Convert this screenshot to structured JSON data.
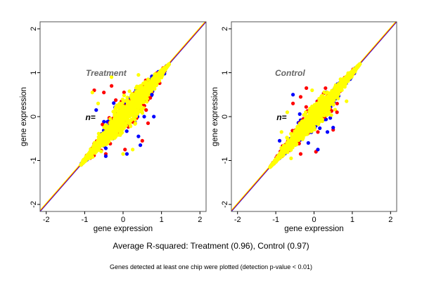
{
  "footer": {
    "summary": "Average R-squared: Treatment (0.96), Control (0.97)",
    "note": "Genes detected at least one chip were plotted (detection p-value < 0.01)"
  },
  "colors": {
    "point_primary": "#ffff00",
    "point_secondary": "#ff0000",
    "point_tertiary": "#0000ff",
    "identity_line": "#ff0000",
    "frame": "#555555"
  },
  "chart_data": [
    {
      "type": "scatter",
      "title": "Treatment",
      "annotation": "n=",
      "xlabel": "gene expression",
      "ylabel": "gene expression",
      "xlim": [
        -2.16,
        2.16
      ],
      "ylim": [
        -2.16,
        2.16
      ],
      "xticks": [
        "-2",
        "-1",
        "0",
        "1",
        "2"
      ],
      "yticks": [
        "-2",
        "-1",
        "0",
        "1",
        "2"
      ],
      "grid": false,
      "reference_line": {
        "slope": 1,
        "intercept": 0
      },
      "cloud_range": [
        -1.1,
        1.2
      ],
      "outliers": {
        "red": [
          [
            -0.75,
            0.6
          ],
          [
            -0.5,
            0.55
          ],
          [
            -0.3,
            0.7
          ],
          [
            0.5,
            -0.55
          ],
          [
            0.05,
            -0.75
          ],
          [
            -0.45,
            -0.85
          ],
          [
            0.65,
            -0.15
          ],
          [
            0.6,
            0.15
          ]
        ],
        "blue": [
          [
            -0.7,
            0.15
          ],
          [
            0.45,
            -0.65
          ],
          [
            0.55,
            0.0
          ],
          [
            0.8,
            0.0
          ],
          [
            0.75,
            0.5
          ],
          [
            0.1,
            -0.85
          ],
          [
            0.4,
            -0.45
          ],
          [
            -0.45,
            -0.9
          ]
        ],
        "yellow": [
          [
            -0.8,
            0.55
          ],
          [
            -0.65,
            0.3
          ],
          [
            0.0,
            -0.85
          ],
          [
            0.25,
            -0.75
          ],
          [
            0.4,
            0.95
          ],
          [
            -0.3,
            0.9
          ]
        ]
      }
    },
    {
      "type": "scatter",
      "title": "Control",
      "annotation": "n=",
      "xlabel": "gene expression",
      "ylabel": "gene expression",
      "xlim": [
        -2.16,
        2.16
      ],
      "ylim": [
        -2.16,
        2.16
      ],
      "xticks": [
        "-2",
        "-1",
        "0",
        "1",
        "2"
      ],
      "yticks": [
        "-2",
        "-1",
        "0",
        "1",
        "2"
      ],
      "grid": false,
      "reference_line": {
        "slope": 1,
        "intercept": 0
      },
      "cloud_range": [
        -1.15,
        1.2
      ],
      "outliers": {
        "red": [
          [
            -0.2,
            0.65
          ],
          [
            -0.35,
            0.45
          ],
          [
            -0.55,
            0.3
          ],
          [
            0.05,
            -0.8
          ],
          [
            -0.35,
            -0.85
          ],
          [
            0.5,
            -0.3
          ],
          [
            0.6,
            0.1
          ],
          [
            0.1,
            -0.35
          ]
        ],
        "blue": [
          [
            -0.55,
            0.5
          ],
          [
            -0.9,
            -0.55
          ],
          [
            0.5,
            -0.25
          ],
          [
            0.1,
            -0.75
          ],
          [
            -0.15,
            -0.6
          ],
          [
            0.35,
            -0.35
          ]
        ],
        "yellow": [
          [
            -0.7,
            0.1
          ],
          [
            -0.85,
            -0.35
          ],
          [
            -0.6,
            -0.95
          ],
          [
            0.85,
            0.35
          ],
          [
            -0.05,
            0.6
          ]
        ]
      }
    }
  ]
}
